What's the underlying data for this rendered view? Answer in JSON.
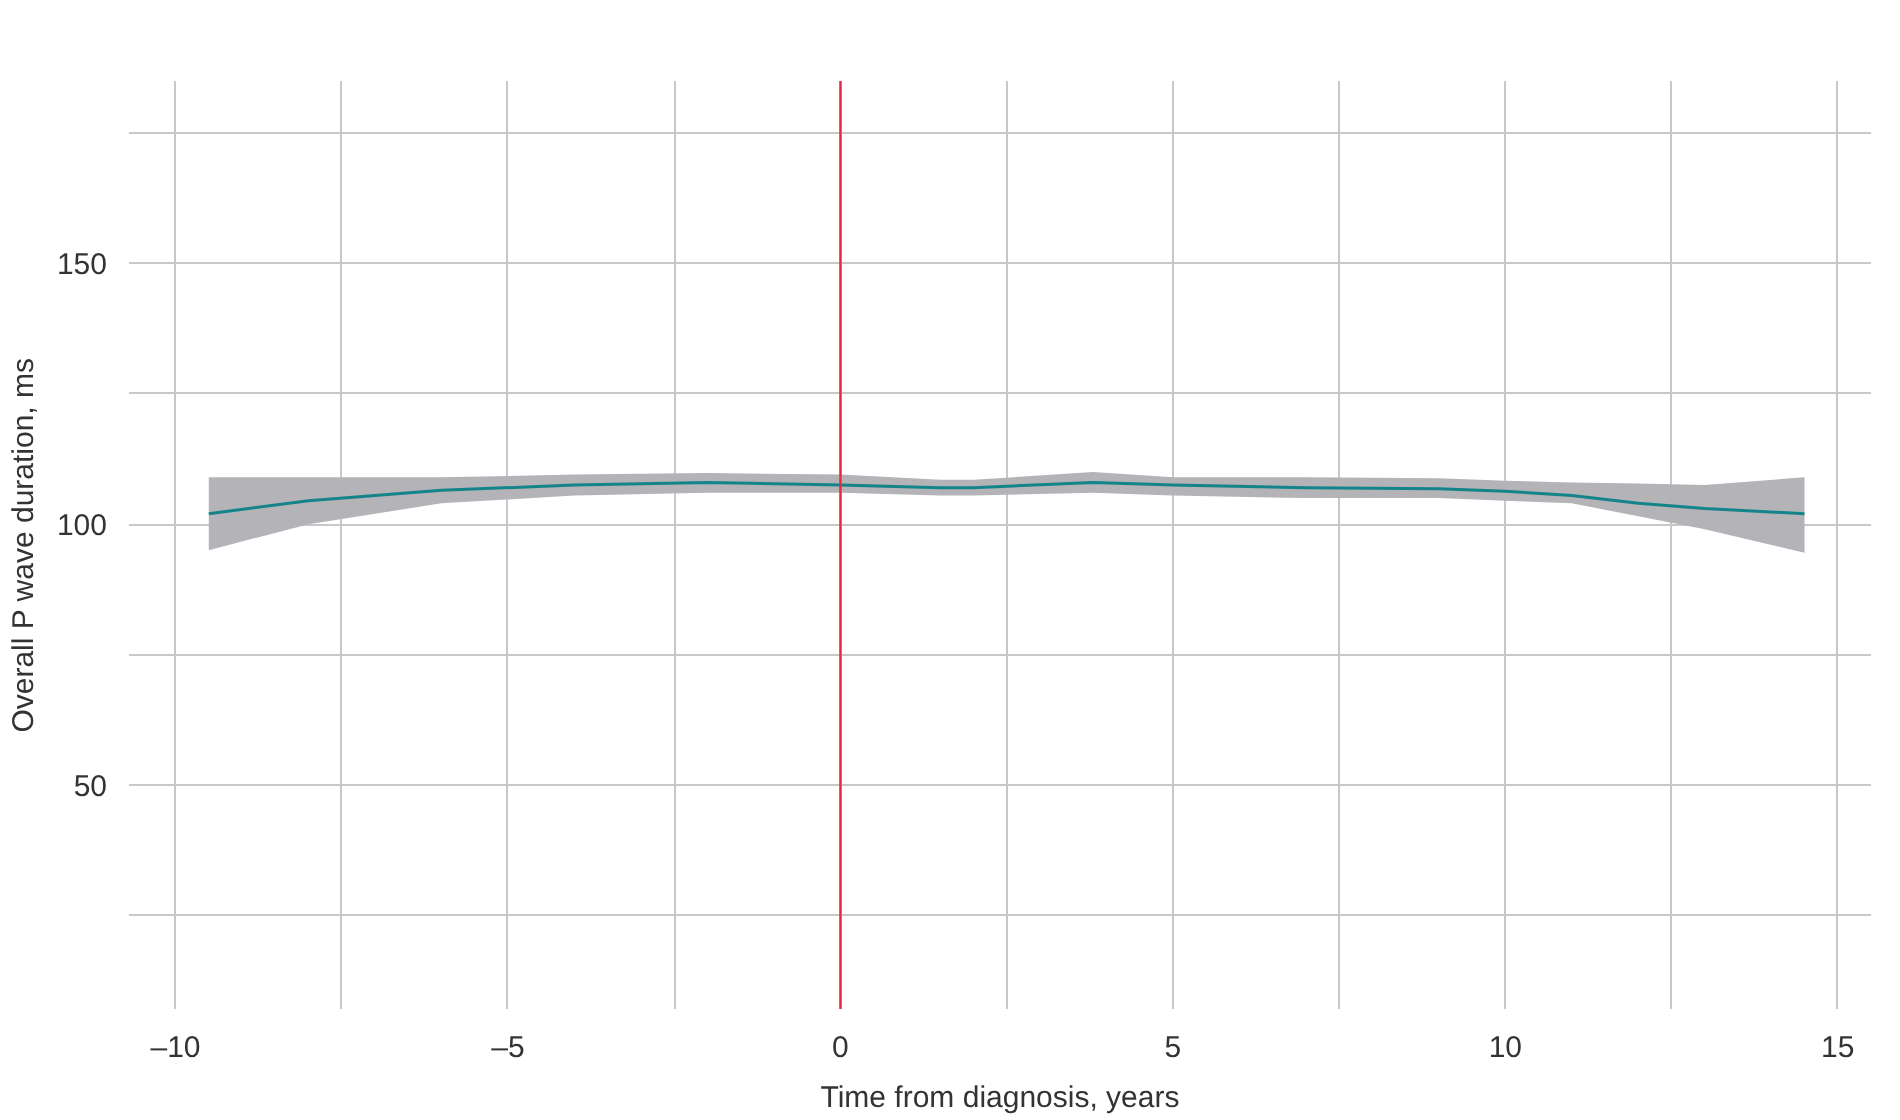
{
  "chart_data": {
    "type": "line",
    "xlabel": "Time from diagnosis, years",
    "ylabel": "Overall P wave duration, ms",
    "xlim": [
      -10.7,
      15.5
    ],
    "ylim": [
      7,
      185
    ],
    "xticks": [
      {
        "value": -10,
        "label": "–10"
      },
      {
        "value": -7.5,
        "label": null
      },
      {
        "value": -5,
        "label": "–5"
      },
      {
        "value": -2.5,
        "label": null
      },
      0,
      {
        "value": 2.5,
        "label": null
      },
      5,
      {
        "value": 7.5,
        "label": null
      },
      10,
      {
        "value": 12.5,
        "label": null
      },
      15
    ],
    "yticks": [
      {
        "value": 25,
        "label": null
      },
      50,
      {
        "value": 75,
        "label": null
      },
      100,
      {
        "value": 125,
        "label": null
      },
      150,
      {
        "value": 175,
        "label": null
      }
    ],
    "grid": true,
    "marker": "none",
    "line_style": "solid",
    "series": [
      {
        "color": "#13858a",
        "x": [
          -9.5,
          -8,
          -6,
          -4,
          -2,
          0,
          1.5,
          2,
          3.8,
          5,
          7,
          9,
          10,
          11,
          12,
          13,
          14.5
        ],
        "values": [
          102,
          104.5,
          106.5,
          107.5,
          108,
          107.5,
          107,
          107,
          108,
          107.5,
          107,
          106.8,
          106.3,
          105.5,
          104,
          103,
          102
        ],
        "lower": [
          95,
          100,
          104,
          105.5,
          106,
          106,
          105.5,
          105.5,
          106,
          105.5,
          105,
          105,
          104.5,
          104,
          101.5,
          99,
          94.5
        ],
        "upper": [
          109,
          109,
          109,
          109.5,
          109.8,
          109.5,
          108.5,
          108.5,
          110,
          109,
          109,
          108.8,
          108.3,
          108,
          107.8,
          107.5,
          109
        ]
      }
    ],
    "ref_lines": [
      {
        "axis": "x",
        "value": 0,
        "color": "#e8283c"
      }
    ]
  }
}
